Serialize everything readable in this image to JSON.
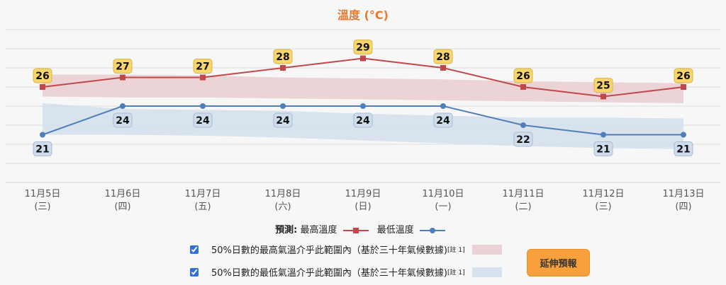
{
  "chart_title": "溫度 (°C)",
  "chart_data": {
    "type": "line",
    "title": "溫度 (°C)",
    "categories": [
      "11月5日\n(三)",
      "11月6日\n(四)",
      "11月7日\n(五)",
      "11月8日\n(六)",
      "11月9日\n(日)",
      "11月10日\n(一)",
      "11月11日\n(二)",
      "11月12日\n(三)",
      "11月13日\n(四)"
    ],
    "series": [
      {
        "name": "最高溫度",
        "color": "#c0474a",
        "marker": "square",
        "values": [
          26,
          27,
          27,
          28,
          29,
          28,
          26,
          25,
          26
        ]
      },
      {
        "name": "最低溫度",
        "color": "#4f7fb8",
        "marker": "circle",
        "values": [
          21,
          24,
          24,
          24,
          24,
          24,
          22,
          21,
          21
        ]
      }
    ],
    "bands": [
      {
        "name": "50%日數的最高氣溫介乎此範圍內",
        "color": "#e9cdd0",
        "lower": [
          25.0,
          24.9,
          24.9,
          24.8,
          24.7,
          24.6,
          24.5,
          24.4,
          24.3
        ],
        "upper": [
          27.3,
          27.3,
          27.2,
          27.0,
          26.9,
          26.8,
          26.6,
          26.5,
          26.4
        ]
      },
      {
        "name": "50%日數的最低氣溫介乎此範圍內",
        "color": "#d3dfec",
        "lower": [
          24.3,
          23.7,
          23.6,
          23.5,
          23.2,
          23.0,
          22.8,
          22.8,
          22.7
        ],
        "upper": [
          21.0,
          21.0,
          20.9,
          20.7,
          20.4,
          20.1,
          19.8,
          19.6,
          19.5
        ]
      }
    ],
    "ylim": [
      16,
      33
    ],
    "grid": true,
    "gridlines": [
      16,
      18,
      20,
      22,
      24,
      26,
      28,
      30,
      32
    ],
    "legend_position": "bottom"
  },
  "x_labels": [
    {
      "date": "11月5日",
      "weekday": "(三)"
    },
    {
      "date": "11月6日",
      "weekday": "(四)"
    },
    {
      "date": "11月7日",
      "weekday": "(五)"
    },
    {
      "date": "11月8日",
      "weekday": "(六)"
    },
    {
      "date": "11月9日",
      "weekday": "(日)"
    },
    {
      "date": "11月10日",
      "weekday": "(一)"
    },
    {
      "date": "11月11日",
      "weekday": "(二)"
    },
    {
      "date": "11月12日",
      "weekday": "(三)"
    },
    {
      "date": "11月13日",
      "weekday": "(四)"
    }
  ],
  "legend": {
    "prefix": "預測:",
    "max_label": "最高溫度",
    "min_label": "最低溫度"
  },
  "band_rows": [
    {
      "label": "50%日數的最高氣溫介乎此範圍內（基於三十年氣候數據)",
      "note": "[註 1]",
      "checked": true,
      "swatch": "#ebd2d6"
    },
    {
      "label": "50%日數的最低氣溫介乎此範圍內（基於三十年氣候數據)",
      "note": "[註 1]",
      "checked": true,
      "swatch": "#d8e1ee"
    }
  ],
  "extend_button": "延伸預報",
  "colors": {
    "title": "#e8792a",
    "max_line": "#c0474a",
    "min_line": "#4f7fb8",
    "max_label_bg": "#f9d66b",
    "min_label_bg": "#cfdcec",
    "button": "#f7a03c"
  }
}
